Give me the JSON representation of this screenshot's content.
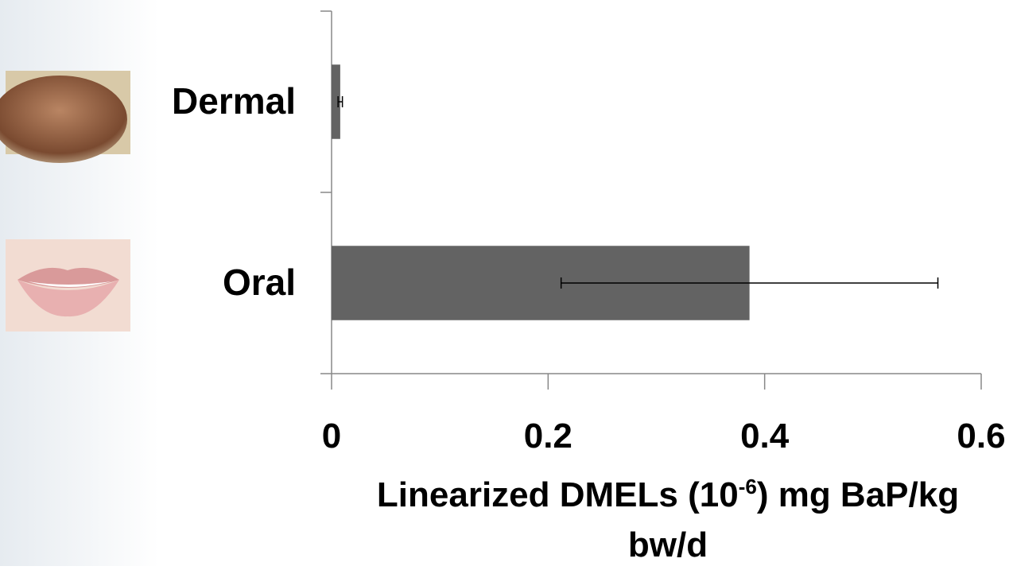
{
  "chart_data": {
    "type": "bar",
    "orientation": "horizontal",
    "categories": [
      "Dermal",
      "Oral"
    ],
    "values": [
      0.008,
      0.386
    ],
    "errors": [
      0.002,
      0.174
    ],
    "color": "#636363",
    "xlim": [
      0,
      0.6
    ],
    "xticks": [
      0,
      0.2,
      0.4,
      0.6
    ],
    "xlabel": {
      "before": "Linearized DMELs (10",
      "superscript": "-6",
      "after": ") mg BaP/kg",
      "line2": "bw/d"
    }
  }
}
